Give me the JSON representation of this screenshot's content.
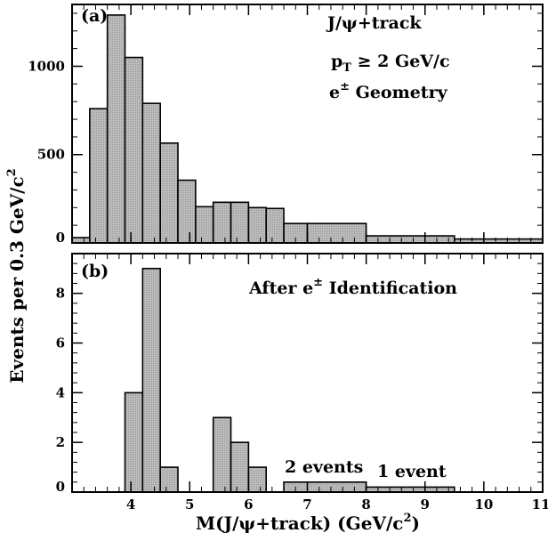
{
  "chart_data": [
    {
      "type": "bar",
      "panel_label": "(a)",
      "annotation_line1": "J/ψ+track",
      "annotation_line2_main": "p",
      "annotation_line2_sub": "T",
      "annotation_line2_rest": " ≥ 2 GeV/c",
      "annotation_line3_main": "e",
      "annotation_line3_sup": "±",
      "annotation_line3_rest": " Geometry",
      "xlim": [
        3.0,
        11.0
      ],
      "ylim": [
        0,
        1350
      ],
      "y_tick_labels": [
        "0",
        "500",
        "1000"
      ],
      "y_ticks": [
        0,
        500,
        1000
      ],
      "bins": [
        {
          "x0": 3.0,
          "x1": 3.3,
          "value": 30
        },
        {
          "x0": 3.3,
          "x1": 3.6,
          "value": 760
        },
        {
          "x0": 3.6,
          "x1": 3.9,
          "value": 1290
        },
        {
          "x0": 3.9,
          "x1": 4.2,
          "value": 1050
        },
        {
          "x0": 4.2,
          "x1": 4.5,
          "value": 790
        },
        {
          "x0": 4.5,
          "x1": 4.8,
          "value": 565
        },
        {
          "x0": 4.8,
          "x1": 5.1,
          "value": 355
        },
        {
          "x0": 5.1,
          "x1": 5.4,
          "value": 205
        },
        {
          "x0": 5.4,
          "x1": 5.7,
          "value": 230
        },
        {
          "x0": 5.7,
          "x1": 6.0,
          "value": 230
        },
        {
          "x0": 6.0,
          "x1": 6.3,
          "value": 200
        },
        {
          "x0": 6.3,
          "x1": 6.6,
          "value": 195
        },
        {
          "x0": 6.6,
          "x1": 7.0,
          "value": 110
        },
        {
          "x0": 7.0,
          "x1": 8.0,
          "value": 110
        },
        {
          "x0": 8.0,
          "x1": 9.5,
          "value": 40
        },
        {
          "x0": 9.5,
          "x1": 11.0,
          "value": 22
        }
      ]
    },
    {
      "type": "bar",
      "panel_label": "(b)",
      "annotation_main": "After e",
      "annotation_sup": "±",
      "annotation_rest": " Identification",
      "label_2_events": "2 events",
      "label_1_event": "1 event",
      "xlim": [
        3.0,
        11.0
      ],
      "ylim": [
        0,
        9.6
      ],
      "y_tick_labels": [
        "0",
        "2",
        "4",
        "6",
        "8"
      ],
      "y_ticks": [
        0,
        2,
        4,
        6,
        8
      ],
      "bins": [
        {
          "x0": 3.9,
          "x1": 4.2,
          "value": 4
        },
        {
          "x0": 4.2,
          "x1": 4.5,
          "value": 9
        },
        {
          "x0": 4.5,
          "x1": 4.8,
          "value": 1
        },
        {
          "x0": 5.4,
          "x1": 5.7,
          "value": 3
        },
        {
          "x0": 5.7,
          "x1": 6.0,
          "value": 2
        },
        {
          "x0": 6.0,
          "x1": 6.3,
          "value": 1
        },
        {
          "x0": 6.6,
          "x1": 8.0,
          "value": 0.4
        },
        {
          "x0": 8.0,
          "x1": 9.5,
          "value": 0.2
        }
      ]
    }
  ],
  "x_tick_labels": [
    "4",
    "5",
    "6",
    "7",
    "8",
    "9",
    "10",
    "11"
  ],
  "x_ticks": [
    4,
    5,
    6,
    7,
    8,
    9,
    10,
    11
  ],
  "x_title_main": "M(J/ψ+track) (GeV/c",
  "x_title_sup": "2",
  "x_title_end": ")",
  "y_title_main": "Events per 0.3 GeV/c",
  "y_title_sup": "2",
  "colors": {
    "bar_fill": "#b8b8b8",
    "stroke": "#000000"
  }
}
